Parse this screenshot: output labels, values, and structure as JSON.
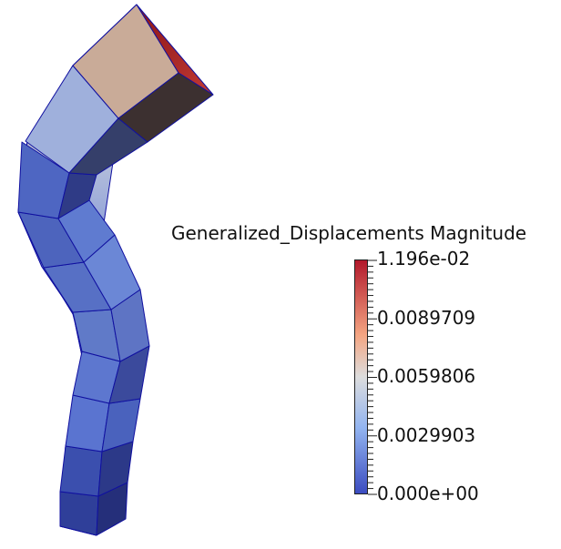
{
  "legend": {
    "title": "Generalized_Displacements Magnitude",
    "labels": [
      "1.196e-02",
      "0.0089709",
      "0.0059806",
      "0.0029903",
      "0.000e+00"
    ],
    "range": [
      0.0,
      0.01196
    ],
    "colors": {
      "high": "#b2182b",
      "upper_mid": "#f4a582",
      "mid": "#dddddd",
      "lower_mid": "#92b4f0",
      "low": "#3b4cc0"
    }
  },
  "mesh": {
    "edge_color": "#1010a0"
  }
}
